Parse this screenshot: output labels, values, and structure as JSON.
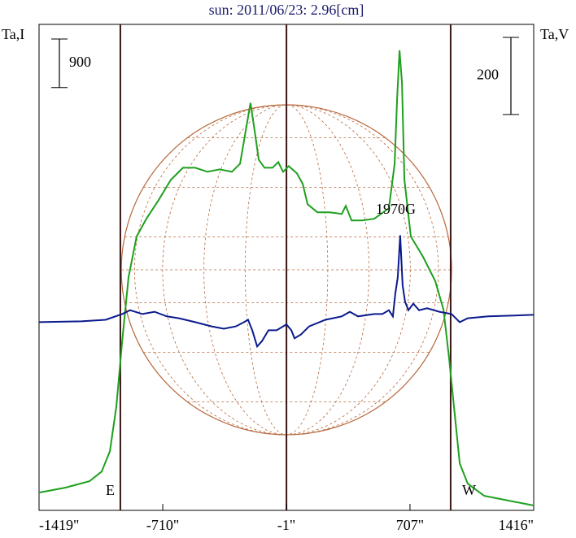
{
  "chart_data": {
    "type": "line",
    "title": "sun: 2011/06/23: 2.96[cm]",
    "y_label": "Ta,I",
    "y2_label": "Ta,V",
    "xlim": [
      -1419,
      1416
    ],
    "xticks": [
      {
        "value": -1419,
        "label": "-1419\""
      },
      {
        "value": -710,
        "label": "-710\""
      },
      {
        "value": -1,
        "label": "-1\""
      },
      {
        "value": 707,
        "label": "707\""
      },
      {
        "value": 1416,
        "label": "1416\""
      }
    ],
    "ylim": [
      0,
      9000
    ],
    "y2lim": [
      -490,
      770
    ],
    "limb_lines": [
      -953,
      -1,
      940
    ],
    "limb_color": "#3a1515",
    "disk_color": "#b8683c",
    "scale_bars": [
      {
        "axis": "y",
        "value": 900
      },
      {
        "axis": "y2",
        "value": 200
      }
    ],
    "annotations": [
      "1970G",
      "E",
      "W"
    ],
    "series": [
      {
        "color": "#1ea01e",
        "axis": "y",
        "x": [
          -1419,
          -1270,
          -1130,
          -1060,
          -1013,
          -976,
          -943,
          -906,
          -860,
          -804,
          -734,
          -664,
          -594,
          -524,
          -454,
          -384,
          -314,
          -267,
          -235,
          -207,
          -183,
          -160,
          -127,
          -81,
          -48,
          -20,
          12,
          59,
          92,
          120,
          176,
          246,
          316,
          339,
          372,
          432,
          502,
          586,
          619,
          633,
          647,
          661,
          675,
          712,
          782,
          852,
          899,
          931,
          959,
          992,
          1038,
          1132,
          1248,
          1416
        ],
        "values": [
          330,
          420,
          540,
          720,
          1095,
          1920,
          3120,
          4320,
          5070,
          5400,
          5745,
          6120,
          6345,
          6345,
          6270,
          6315,
          6270,
          6420,
          7020,
          7545,
          7020,
          6495,
          6345,
          6345,
          6450,
          6270,
          6375,
          6240,
          6045,
          5670,
          5520,
          5520,
          5490,
          5640,
          5370,
          5370,
          5400,
          5595,
          6420,
          7620,
          8520,
          7920,
          6120,
          5070,
          4695,
          4245,
          3720,
          2820,
          1920,
          870,
          495,
          270,
          195,
          90
        ]
      },
      {
        "color": "#0a1a8c",
        "axis": "y2",
        "x": [
          -1419,
          -1177,
          -1037,
          -943,
          -897,
          -827,
          -757,
          -687,
          -617,
          -524,
          -430,
          -360,
          -291,
          -244,
          -221,
          -197,
          -169,
          -141,
          -104,
          -57,
          -1,
          27,
          45,
          82,
          129,
          222,
          316,
          362,
          409,
          502,
          549,
          586,
          609,
          623,
          637,
          651,
          665,
          679,
          698,
          726,
          759,
          805,
          875,
          945,
          992,
          1038,
          1155,
          1416
        ],
        "values": [
          -2,
          0,
          4,
          19,
          29,
          19,
          25,
          13,
          8,
          -2,
          -13,
          -19,
          -13,
          -2,
          4,
          -23,
          -65,
          -51,
          -23,
          -23,
          -8,
          -23,
          -44,
          -34,
          -13,
          4,
          13,
          25,
          13,
          19,
          19,
          29,
          13,
          72,
          114,
          223,
          93,
          51,
          29,
          46,
          29,
          34,
          25,
          19,
          -2,
          8,
          13,
          17
        ]
      }
    ]
  }
}
